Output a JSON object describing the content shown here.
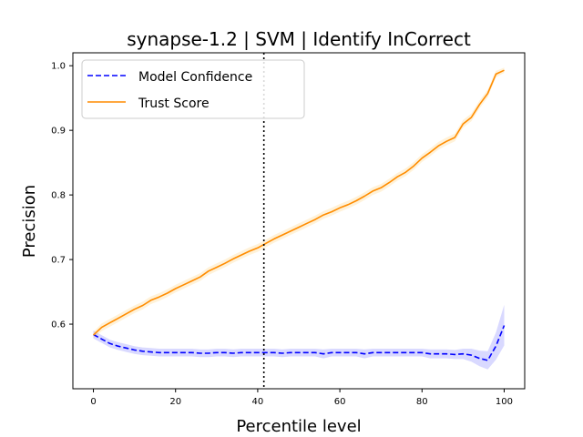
{
  "chart_data": {
    "type": "line",
    "title": "synapse-1.2 | SVM | Identify InCorrect",
    "xlabel": "Percentile level",
    "ylabel": "Precision",
    "xlim": [
      -5,
      105
    ],
    "ylim": [
      0.5,
      1.02
    ],
    "xticks": [
      0,
      20,
      40,
      60,
      80,
      100
    ],
    "xtick_labels": [
      "0",
      "20",
      "40",
      "60",
      "80",
      "100"
    ],
    "yticks": [
      0.6,
      0.7,
      0.8,
      0.9,
      1.0
    ],
    "ytick_labels": [
      "0.6",
      "0.7",
      "0.8",
      "0.9",
      "1.0"
    ],
    "grid": false,
    "legend": {
      "placement": "top-left"
    },
    "vline": {
      "x": 41.5,
      "style": "dotted",
      "color": "#000000"
    },
    "series": [
      {
        "name": "Model Confidence",
        "color": "#0000ff",
        "style": "dashed",
        "band_color": "#0000ff",
        "x": [
          0,
          2,
          4,
          6,
          8,
          10,
          12,
          14,
          16,
          18,
          20,
          22,
          24,
          26,
          28,
          30,
          32,
          34,
          36,
          38,
          40,
          42,
          44,
          46,
          48,
          50,
          52,
          54,
          56,
          58,
          60,
          62,
          64,
          66,
          68,
          70,
          72,
          74,
          76,
          78,
          80,
          82,
          84,
          86,
          88,
          90,
          92,
          94,
          96,
          98,
          100
        ],
        "values": [
          0.584,
          0.577,
          0.57,
          0.566,
          0.563,
          0.56,
          0.558,
          0.557,
          0.556,
          0.556,
          0.556,
          0.556,
          0.556,
          0.555,
          0.555,
          0.556,
          0.556,
          0.555,
          0.556,
          0.556,
          0.556,
          0.556,
          0.556,
          0.555,
          0.556,
          0.556,
          0.556,
          0.556,
          0.554,
          0.556,
          0.556,
          0.556,
          0.556,
          0.554,
          0.556,
          0.556,
          0.556,
          0.556,
          0.556,
          0.556,
          0.556,
          0.554,
          0.554,
          0.554,
          0.553,
          0.554,
          0.552,
          0.547,
          0.544,
          0.566,
          0.598
        ],
        "lower": [
          0.578,
          0.571,
          0.564,
          0.56,
          0.557,
          0.554,
          0.552,
          0.551,
          0.55,
          0.55,
          0.55,
          0.55,
          0.55,
          0.549,
          0.549,
          0.55,
          0.55,
          0.549,
          0.55,
          0.55,
          0.55,
          0.55,
          0.55,
          0.549,
          0.55,
          0.55,
          0.55,
          0.55,
          0.547,
          0.55,
          0.55,
          0.55,
          0.55,
          0.547,
          0.55,
          0.55,
          0.55,
          0.55,
          0.55,
          0.55,
          0.55,
          0.547,
          0.547,
          0.547,
          0.546,
          0.546,
          0.542,
          0.535,
          0.53,
          0.545,
          0.567
        ],
        "upper": [
          0.59,
          0.583,
          0.576,
          0.572,
          0.569,
          0.566,
          0.564,
          0.563,
          0.562,
          0.562,
          0.562,
          0.562,
          0.562,
          0.561,
          0.561,
          0.562,
          0.562,
          0.561,
          0.562,
          0.562,
          0.562,
          0.562,
          0.562,
          0.561,
          0.562,
          0.562,
          0.562,
          0.562,
          0.561,
          0.562,
          0.562,
          0.562,
          0.562,
          0.561,
          0.562,
          0.562,
          0.562,
          0.562,
          0.562,
          0.562,
          0.562,
          0.561,
          0.561,
          0.561,
          0.56,
          0.562,
          0.562,
          0.559,
          0.558,
          0.587,
          0.63
        ]
      },
      {
        "name": "Trust Score",
        "color": "#ff8c00",
        "style": "solid",
        "band_color": "#ffa500",
        "x": [
          0,
          2,
          4,
          6,
          8,
          10,
          12,
          14,
          16,
          18,
          20,
          22,
          24,
          26,
          28,
          30,
          32,
          34,
          36,
          38,
          40,
          42,
          44,
          46,
          48,
          50,
          52,
          54,
          56,
          58,
          60,
          62,
          64,
          66,
          68,
          70,
          72,
          74,
          76,
          78,
          80,
          82,
          84,
          86,
          88,
          90,
          92,
          94,
          96,
          98,
          100
        ],
        "values": [
          0.583,
          0.595,
          0.602,
          0.609,
          0.616,
          0.623,
          0.629,
          0.637,
          0.642,
          0.648,
          0.655,
          0.661,
          0.667,
          0.673,
          0.682,
          0.688,
          0.694,
          0.701,
          0.707,
          0.713,
          0.718,
          0.725,
          0.732,
          0.738,
          0.744,
          0.75,
          0.756,
          0.762,
          0.769,
          0.774,
          0.78,
          0.785,
          0.791,
          0.798,
          0.806,
          0.811,
          0.819,
          0.828,
          0.835,
          0.845,
          0.857,
          0.866,
          0.876,
          0.883,
          0.889,
          0.91,
          0.92,
          0.94,
          0.957,
          0.987,
          0.993
        ],
        "lower": [
          0.578,
          0.589,
          0.596,
          0.603,
          0.61,
          0.617,
          0.623,
          0.631,
          0.636,
          0.642,
          0.649,
          0.655,
          0.661,
          0.667,
          0.676,
          0.682,
          0.688,
          0.695,
          0.701,
          0.707,
          0.712,
          0.719,
          0.726,
          0.732,
          0.738,
          0.744,
          0.75,
          0.756,
          0.763,
          0.768,
          0.774,
          0.779,
          0.785,
          0.792,
          0.8,
          0.805,
          0.813,
          0.822,
          0.829,
          0.839,
          0.851,
          0.86,
          0.87,
          0.877,
          0.883,
          0.904,
          0.914,
          0.934,
          0.951,
          0.982,
          0.989
        ],
        "upper": [
          0.588,
          0.601,
          0.608,
          0.615,
          0.622,
          0.629,
          0.635,
          0.643,
          0.648,
          0.654,
          0.661,
          0.667,
          0.673,
          0.679,
          0.688,
          0.694,
          0.7,
          0.707,
          0.713,
          0.719,
          0.724,
          0.731,
          0.738,
          0.744,
          0.75,
          0.756,
          0.762,
          0.768,
          0.775,
          0.78,
          0.786,
          0.791,
          0.797,
          0.804,
          0.812,
          0.817,
          0.825,
          0.834,
          0.841,
          0.851,
          0.863,
          0.872,
          0.882,
          0.889,
          0.895,
          0.916,
          0.926,
          0.946,
          0.963,
          0.992,
          0.997
        ]
      }
    ]
  }
}
